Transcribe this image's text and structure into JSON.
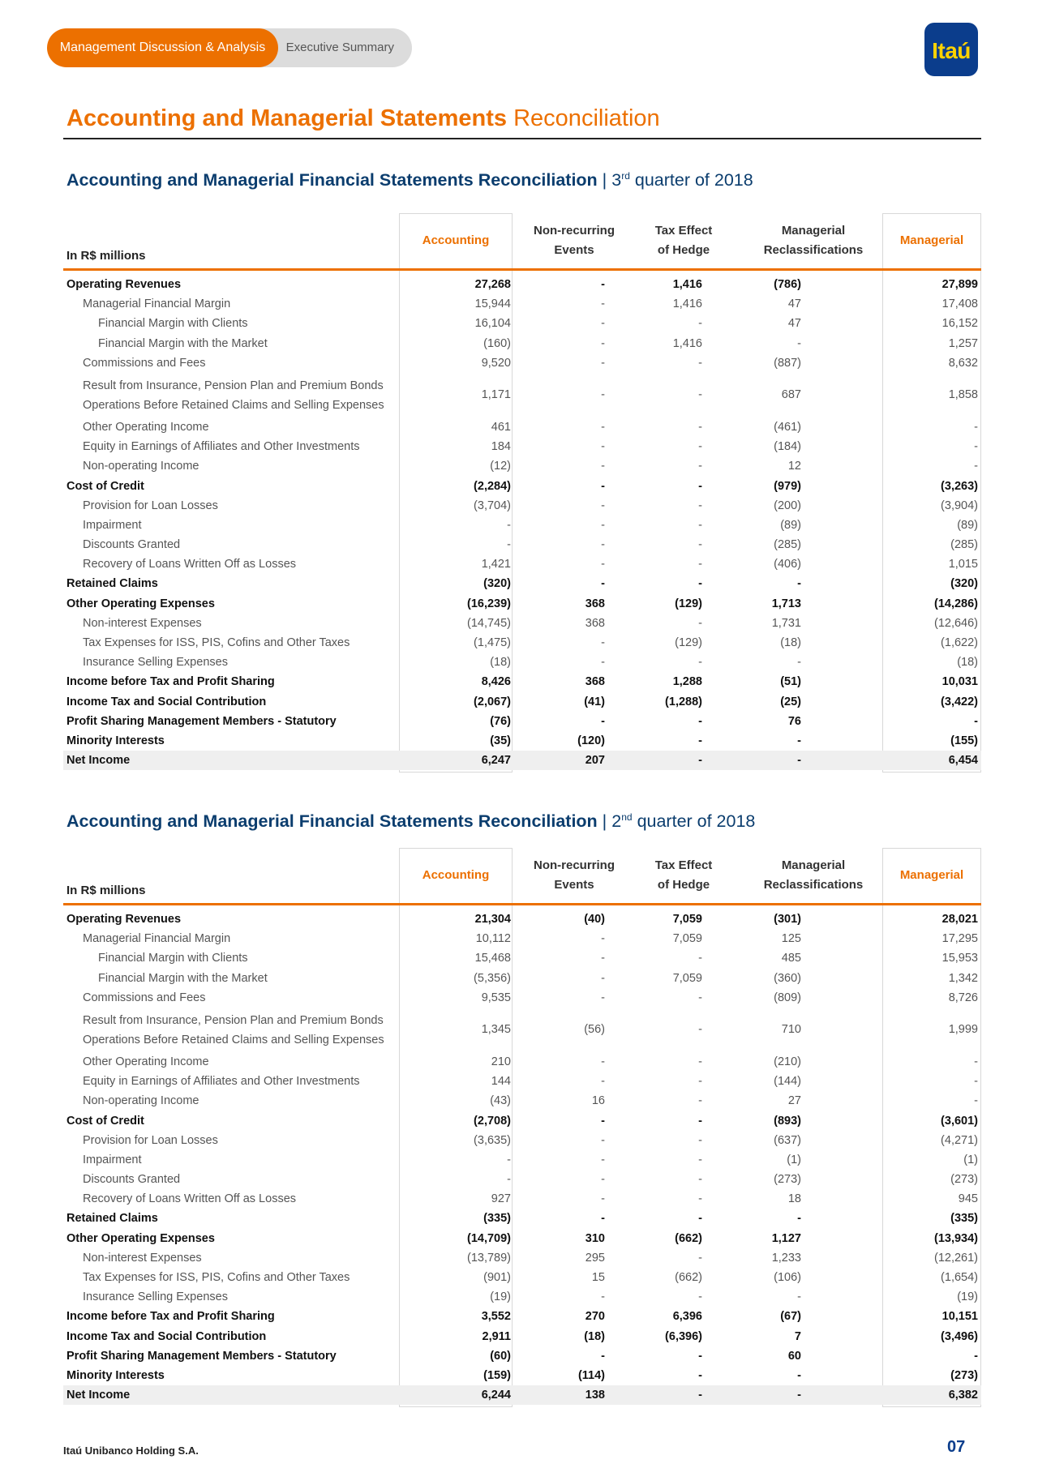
{
  "nav": {
    "tab_primary": "Management Discussion & Analysis",
    "tab_secondary": "Executive Summary",
    "logo_text": "Itaú"
  },
  "colors": {
    "orange": "#ec7000",
    "navy": "#0b3d8c",
    "yellow": "#ffd200"
  },
  "page_title": {
    "bold": "Accounting and Managerial Statements",
    "light": "Reconciliation"
  },
  "units_label": "In R$ millions",
  "columns": {
    "accounting": "Accounting",
    "nonrec_1": "Non-recurring",
    "nonrec_2": "Events",
    "tax_1": "Tax Effect",
    "tax_2": "of Hedge",
    "mgr_1": "Managerial",
    "mgr_2": "Reclassifications",
    "managerial": "Managerial"
  },
  "tables": [
    {
      "title_bold": "Accounting and Managerial Financial Statements Reconciliation",
      "title_sep": "|",
      "title_num": "3",
      "title_sup": "rd",
      "title_rest": "quarter of 2018",
      "rows": [
        {
          "label": "Operating Revenues",
          "level": 0,
          "bold": true,
          "v": [
            "27,268",
            "-",
            "1,416",
            "(786)",
            "27,899"
          ]
        },
        {
          "label": "Managerial Financial Margin",
          "level": 1,
          "v": [
            "15,944",
            "-",
            "1,416",
            "47",
            "17,408"
          ]
        },
        {
          "label": "Financial Margin with Clients",
          "level": 2,
          "v": [
            "16,104",
            "-",
            "-",
            "47",
            "16,152"
          ]
        },
        {
          "label": "Financial Margin with the Market",
          "level": 2,
          "v": [
            "(160)",
            "-",
            "1,416",
            "-",
            "1,257"
          ]
        },
        {
          "label": "Commissions and Fees",
          "level": 1,
          "v": [
            "9,520",
            "-",
            "-",
            "(887)",
            "8,632"
          ]
        },
        {
          "label": "Result from Insurance, Pension Plan and Premium Bonds",
          "label2": "Operations Before Retained Claims and Selling Expenses",
          "level": 1,
          "tall": true,
          "v": [
            "1,171",
            "-",
            "-",
            "687",
            "1,858"
          ]
        },
        {
          "label": "Other Operating Income",
          "level": 1,
          "v": [
            "461",
            "-",
            "-",
            "(461)",
            "-"
          ]
        },
        {
          "label": "Equity in Earnings of Affiliates and Other Investments",
          "level": 1,
          "v": [
            "184",
            "-",
            "-",
            "(184)",
            "-"
          ]
        },
        {
          "label": "Non-operating Income",
          "level": 1,
          "v": [
            "(12)",
            "-",
            "-",
            "12",
            "-"
          ]
        },
        {
          "label": "Cost of Credit",
          "level": 0,
          "bold": true,
          "v": [
            "(2,284)",
            "-",
            "-",
            "(979)",
            "(3,263)"
          ]
        },
        {
          "label": "Provision for Loan Losses",
          "level": 1,
          "v": [
            "(3,704)",
            "-",
            "-",
            "(200)",
            "(3,904)"
          ]
        },
        {
          "label": "Impairment",
          "level": 1,
          "v": [
            "-",
            "-",
            "-",
            "(89)",
            "(89)"
          ]
        },
        {
          "label": "Discounts Granted",
          "level": 1,
          "v": [
            "-",
            "-",
            "-",
            "(285)",
            "(285)"
          ]
        },
        {
          "label": "Recovery of Loans Written Off as Losses",
          "level": 1,
          "v": [
            "1,421",
            "-",
            "-",
            "(406)",
            "1,015"
          ]
        },
        {
          "label": "Retained Claims",
          "level": 0,
          "bold": true,
          "v": [
            "(320)",
            "-",
            "-",
            "-",
            "(320)"
          ]
        },
        {
          "label": "Other Operating Expenses",
          "level": 0,
          "bold": true,
          "v": [
            "(16,239)",
            "368",
            "(129)",
            "1,713",
            "(14,286)"
          ]
        },
        {
          "label": "Non-interest Expenses",
          "level": 1,
          "v": [
            "(14,745)",
            "368",
            "-",
            "1,731",
            "(12,646)"
          ]
        },
        {
          "label": "Tax Expenses for ISS, PIS, Cofins and Other Taxes",
          "level": 1,
          "v": [
            "(1,475)",
            "-",
            "(129)",
            "(18)",
            "(1,622)"
          ]
        },
        {
          "label": "Insurance Selling Expenses",
          "level": 1,
          "v": [
            "(18)",
            "-",
            "-",
            "-",
            "(18)"
          ]
        },
        {
          "label": "Income before Tax and Profit Sharing",
          "level": 0,
          "bold": true,
          "v": [
            "8,426",
            "368",
            "1,288",
            "(51)",
            "10,031"
          ]
        },
        {
          "label": "Income Tax and Social Contribution",
          "level": 0,
          "bold": true,
          "v": [
            "(2,067)",
            "(41)",
            "(1,288)",
            "(25)",
            "(3,422)"
          ]
        },
        {
          "label": "Profit Sharing Management Members - Statutory",
          "level": 0,
          "bold": true,
          "v": [
            "(76)",
            "-",
            "-",
            "76",
            "-"
          ]
        },
        {
          "label": "Minority Interests",
          "level": 0,
          "bold": true,
          "v": [
            "(35)",
            "(120)",
            "-",
            "-",
            "(155)"
          ]
        },
        {
          "label": "Net Income",
          "level": 0,
          "bold": true,
          "shade": true,
          "v": [
            "6,247",
            "207",
            "-",
            "-",
            "6,454"
          ]
        }
      ]
    },
    {
      "title_bold": "Accounting and Managerial Financial Statements Reconciliation",
      "title_sep": "|",
      "title_num": "2",
      "title_sup": "nd",
      "title_rest": "quarter of 2018",
      "rows": [
        {
          "label": "Operating Revenues",
          "level": 0,
          "bold": true,
          "v": [
            "21,304",
            "(40)",
            "7,059",
            "(301)",
            "28,021"
          ]
        },
        {
          "label": "Managerial Financial Margin",
          "level": 1,
          "v": [
            "10,112",
            "-",
            "7,059",
            "125",
            "17,295"
          ]
        },
        {
          "label": "Financial Margin with Clients",
          "level": 2,
          "v": [
            "15,468",
            "-",
            "-",
            "485",
            "15,953"
          ]
        },
        {
          "label": "Financial Margin with the Market",
          "level": 2,
          "v": [
            "(5,356)",
            "-",
            "7,059",
            "(360)",
            "1,342"
          ]
        },
        {
          "label": "Commissions and Fees",
          "level": 1,
          "v": [
            "9,535",
            "-",
            "-",
            "(809)",
            "8,726"
          ]
        },
        {
          "label": "Result from Insurance, Pension Plan and Premium Bonds",
          "label2": "Operations Before Retained Claims and Selling Expenses",
          "level": 1,
          "tall": true,
          "v": [
            "1,345",
            "(56)",
            "-",
            "710",
            "1,999"
          ]
        },
        {
          "label": "Other Operating Income",
          "level": 1,
          "v": [
            "210",
            "-",
            "-",
            "(210)",
            "-"
          ]
        },
        {
          "label": "Equity in Earnings of Affiliates and Other Investments",
          "level": 1,
          "v": [
            "144",
            "-",
            "-",
            "(144)",
            "-"
          ]
        },
        {
          "label": "Non-operating Income",
          "level": 1,
          "v": [
            "(43)",
            "16",
            "-",
            "27",
            "-"
          ]
        },
        {
          "label": "Cost of Credit",
          "level": 0,
          "bold": true,
          "v": [
            "(2,708)",
            "-",
            "-",
            "(893)",
            "(3,601)"
          ]
        },
        {
          "label": "Provision for Loan Losses",
          "level": 1,
          "v": [
            "(3,635)",
            "-",
            "-",
            "(637)",
            "(4,271)"
          ]
        },
        {
          "label": "Impairment",
          "level": 1,
          "v": [
            "-",
            "-",
            "-",
            "(1)",
            "(1)"
          ]
        },
        {
          "label": "Discounts Granted",
          "level": 1,
          "v": [
            "-",
            "-",
            "-",
            "(273)",
            "(273)"
          ]
        },
        {
          "label": "Recovery of Loans Written Off as Losses",
          "level": 1,
          "v": [
            "927",
            "-",
            "-",
            "18",
            "945"
          ]
        },
        {
          "label": "Retained Claims",
          "level": 0,
          "bold": true,
          "v": [
            "(335)",
            "-",
            "-",
            "-",
            "(335)"
          ]
        },
        {
          "label": "Other Operating Expenses",
          "level": 0,
          "bold": true,
          "v": [
            "(14,709)",
            "310",
            "(662)",
            "1,127",
            "(13,934)"
          ]
        },
        {
          "label": "Non-interest Expenses",
          "level": 1,
          "v": [
            "(13,789)",
            "295",
            "-",
            "1,233",
            "(12,261)"
          ]
        },
        {
          "label": "Tax Expenses for ISS, PIS, Cofins and Other Taxes",
          "level": 1,
          "v": [
            "(901)",
            "15",
            "(662)",
            "(106)",
            "(1,654)"
          ]
        },
        {
          "label": "Insurance Selling Expenses",
          "level": 1,
          "v": [
            "(19)",
            "-",
            "-",
            "-",
            "(19)"
          ]
        },
        {
          "label": "Income before Tax and Profit Sharing",
          "level": 0,
          "bold": true,
          "v": [
            "3,552",
            "270",
            "6,396",
            "(67)",
            "10,151"
          ]
        },
        {
          "label": "Income Tax and Social Contribution",
          "level": 0,
          "bold": true,
          "v": [
            "2,911",
            "(18)",
            "(6,396)",
            "7",
            "(3,496)"
          ]
        },
        {
          "label": "Profit Sharing Management Members - Statutory",
          "level": 0,
          "bold": true,
          "v": [
            "(60)",
            "-",
            "-",
            "60",
            "-"
          ]
        },
        {
          "label": "Minority Interests",
          "level": 0,
          "bold": true,
          "v": [
            "(159)",
            "(114)",
            "-",
            "-",
            "(273)"
          ]
        },
        {
          "label": "Net Income",
          "level": 0,
          "bold": true,
          "shade": true,
          "v": [
            "6,244",
            "138",
            "-",
            "-",
            "6,382"
          ]
        }
      ]
    }
  ],
  "footer": {
    "company": "Itaú Unibanco Holding S.A.",
    "page_number": "07"
  }
}
